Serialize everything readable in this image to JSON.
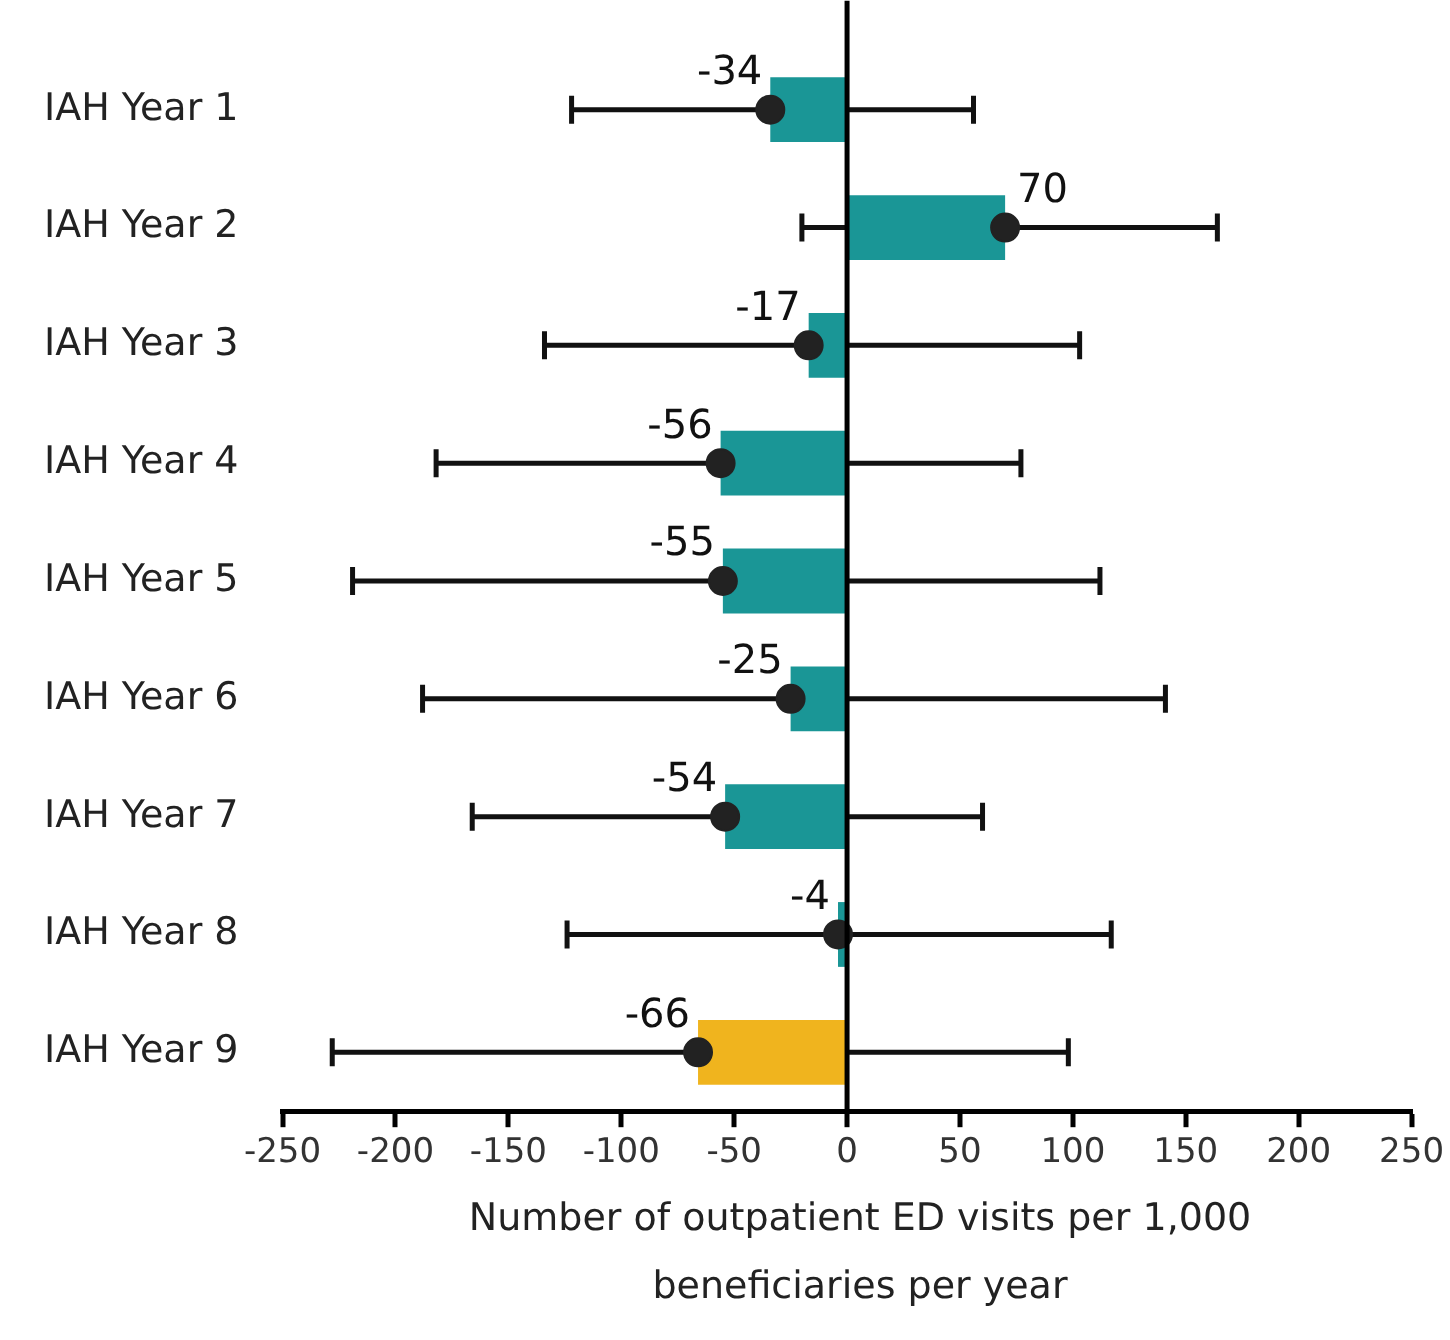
{
  "chart_data": {
    "type": "bar",
    "orientation": "horizontal",
    "xlabel": "Number of outpatient ED visits per 1,000 beneficiaries per year",
    "categories": [
      "IAH Year 1",
      "IAH Year 2",
      "IAH Year 3",
      "IAH Year 4",
      "IAH Year 5",
      "IAH Year 6",
      "IAH Year 7",
      "IAH Year 8",
      "IAH Year 9"
    ],
    "series": [
      {
        "values": [
          -34,
          70,
          -17,
          -56,
          -55,
          -25,
          -54,
          -4,
          -66
        ],
        "colors": [
          "#1a9696",
          "#1a9696",
          "#1a9696",
          "#1a9696",
          "#1a9696",
          "#1a9696",
          "#1a9696",
          "#1a9696",
          "#f0b41e"
        ]
      },
      {
        "type": "scatter",
        "x": [
          "IAH Year 1",
          "IAH Year 2",
          "IAH Year 3",
          "IAH Year 4",
          "IAH Year 5",
          "IAH Year 6",
          "IAH Year 7",
          "IAH Year 8",
          "IAH Year 9"
        ],
        "values": [
          -34,
          70,
          -17,
          -56,
          -55,
          -25,
          -54,
          -4,
          -66
        ],
        "color": "#222222",
        "marker": "circle",
        "value_labels": [
          "-34",
          "70",
          "-17",
          "-56",
          "-55",
          "-25",
          "-54",
          "-4",
          "-66"
        ],
        "errors": [
          [
            -122,
            56
          ],
          [
            -20,
            164
          ],
          [
            -134,
            103
          ],
          [
            -182,
            77
          ],
          [
            -219,
            112
          ],
          [
            -188,
            141
          ],
          [
            -166,
            60
          ],
          [
            -124,
            117
          ],
          [
            -228,
            98
          ]
        ]
      }
    ],
    "grid": false,
    "legend": false,
    "ref_lines": [
      {
        "axis": "x",
        "value": 0,
        "color": "#000000"
      }
    ],
    "xlim": [
      -250,
      250
    ],
    "xticks": [
      -250,
      -200,
      -150,
      -100,
      -50,
      0,
      50,
      100,
      150,
      200,
      250
    ]
  }
}
